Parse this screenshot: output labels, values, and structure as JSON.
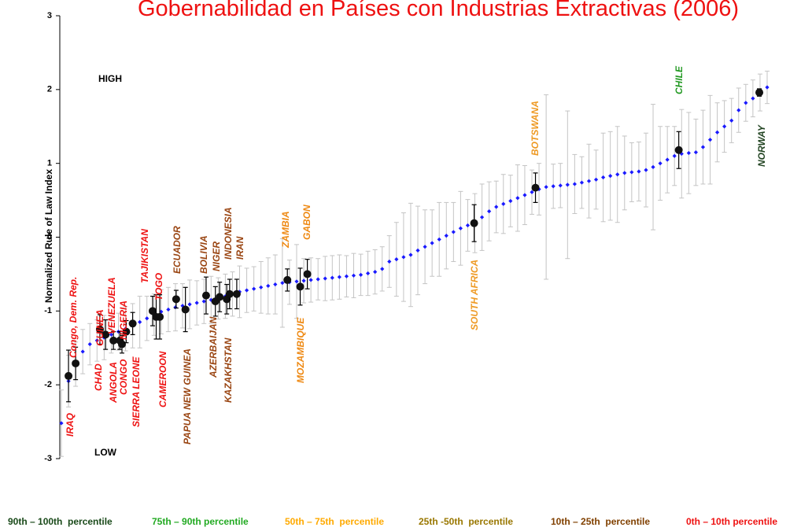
{
  "chart_data": {
    "type": "errorbar",
    "title": "Gobernabilidad en Países con Industrias Extractivas (2006)",
    "y_label": "Normalized Rule of Law Index",
    "annotations": [
      "HIGH",
      "LOW"
    ],
    "ylim": [
      -3,
      3
    ],
    "yticks": [
      -3,
      -2,
      -1,
      0,
      1,
      2,
      3
    ],
    "xlim": [
      0,
      99
    ],
    "series": [
      {
        "color": "#1a1aff",
        "values": [
          -2.52,
          -1.95,
          -1.72,
          -1.55,
          -1.45,
          -1.4,
          -1.36,
          -1.32,
          -1.28,
          -1.24,
          -1.2,
          -1.15,
          -1.1,
          -1.05,
          -1.01,
          -0.98,
          -0.95,
          -0.93,
          -0.91,
          -0.89,
          -0.87,
          -0.85,
          -0.83,
          -0.8,
          -0.77,
          -0.74,
          -0.72,
          -0.7,
          -0.68,
          -0.66,
          -0.64,
          -0.62,
          -0.61,
          -0.6,
          -0.59,
          -0.58,
          -0.57,
          -0.56,
          -0.55,
          -0.54,
          -0.53,
          -0.52,
          -0.51,
          -0.49,
          -0.47,
          -0.43,
          -0.33,
          -0.3,
          -0.27,
          -0.24,
          -0.18,
          -0.13,
          -0.08,
          -0.03,
          0.02,
          0.07,
          0.12,
          0.16,
          0.19,
          0.27,
          0.35,
          0.41,
          0.45,
          0.49,
          0.53,
          0.57,
          0.61,
          0.65,
          0.68,
          0.69,
          0.7,
          0.71,
          0.72,
          0.74,
          0.76,
          0.78,
          0.81,
          0.83,
          0.85,
          0.87,
          0.88,
          0.89,
          0.91,
          0.95,
          1.0,
          1.05,
          1.1,
          1.13,
          1.14,
          1.15,
          1.22,
          1.32,
          1.42,
          1.5,
          1.58,
          1.72,
          1.82,
          1.88,
          1.96,
          2.03
        ],
        "errors": [
          0.45,
          0.35,
          0.3,
          0.3,
          0.28,
          0.28,
          0.3,
          0.25,
          0.25,
          0.3,
          0.3,
          0.35,
          0.3,
          0.28,
          0.3,
          0.3,
          0.32,
          0.3,
          0.33,
          0.3,
          0.3,
          0.32,
          0.28,
          0.3,
          0.3,
          0.35,
          0.3,
          0.3,
          0.35,
          0.38,
          0.4,
          0.6,
          0.3,
          0.5,
          0.3,
          0.3,
          0.28,
          0.3,
          0.3,
          0.3,
          0.28,
          0.3,
          0.28,
          0.3,
          0.3,
          0.3,
          0.35,
          0.5,
          0.6,
          0.7,
          0.6,
          0.5,
          0.45,
          0.5,
          0.45,
          0.4,
          0.5,
          0.35,
          0.4,
          0.45,
          0.4,
          0.35,
          0.4,
          0.35,
          0.45,
          0.4,
          0.3,
          0.35,
          1.25,
          0.3,
          0.3,
          1.0,
          0.4,
          0.35,
          0.5,
          0.4,
          0.6,
          0.6,
          0.65,
          0.5,
          0.4,
          0.4,
          0.5,
          0.85,
          0.5,
          0.45,
          0.4,
          0.6,
          0.55,
          0.45,
          0.5,
          0.6,
          0.4,
          0.35,
          0.3,
          0.3,
          0.25,
          0.25,
          0.25,
          0.22
        ]
      }
    ],
    "countries": {
      "names": [
        "IRAQ",
        "Congo, Dem. Rep.",
        "CHAD",
        "GUINEA",
        "ANGOLA",
        "VENEZUELA",
        "CONGO",
        "NIGERIA",
        "SIERRA LEONE",
        "TAJIKISTAN",
        "TOGO",
        "CAMEROON",
        "ECUADOR",
        "PAPUA NEW GUINEA",
        "BOLIVIA",
        "AZERBAIJAN",
        "NIGER",
        "KAZAKHSTAN",
        "INDONESIA",
        "IRAN",
        "ZAMBIA",
        "MOZAMBIQUE",
        "GABON",
        "SOUTH AFRICA",
        "BOTSWANA",
        "CHILE",
        "NORWAY"
      ],
      "x": [
        1.0,
        2.0,
        5.4,
        6.2,
        7.3,
        8.2,
        8.5,
        9.1,
        10.0,
        12.8,
        13.3,
        13.8,
        16.1,
        17.4,
        20.3,
        21.6,
        22.2,
        23.2,
        23.6,
        24.6,
        31.7,
        33.5,
        34.5,
        57.9,
        66.5,
        86.6,
        97.9
      ],
      "values": [
        -1.88,
        -1.71,
        -1.25,
        -1.32,
        -1.4,
        -1.4,
        -1.45,
        -1.28,
        -1.17,
        -1.0,
        -1.08,
        -1.08,
        -0.84,
        -0.98,
        -0.79,
        -0.87,
        -0.81,
        -0.84,
        -0.77,
        -0.77,
        -0.58,
        -0.67,
        -0.5,
        0.19,
        0.67,
        1.18,
        1.96
      ],
      "errors": [
        0.35,
        0.22,
        0.2,
        0.2,
        0.12,
        0.12,
        0.12,
        0.15,
        0.15,
        0.2,
        0.3,
        0.3,
        0.12,
        0.3,
        0.25,
        0.2,
        0.2,
        0.2,
        0.2,
        0.2,
        0.15,
        0.25,
        0.2,
        0.25,
        0.2,
        0.25,
        0.05
      ],
      "colors": [
        "#ee1111",
        "#ee1111",
        "#ee1111",
        "#ee1111",
        "#ee1111",
        "#ee1111",
        "#ee1111",
        "#ee1111",
        "#ee1111",
        "#ee1111",
        "#ee1111",
        "#ee1111",
        "#994411",
        "#994411",
        "#994411",
        "#994411",
        "#994411",
        "#994411",
        "#994411",
        "#994411",
        "#ee8811",
        "#ee8811",
        "#ee8811",
        "#ee9922",
        "#ee9922",
        "#229922",
        "#224422"
      ]
    },
    "legend": [
      {
        "label": "90th – 100th  percentile",
        "color": "#1a4a1a"
      },
      {
        "label": "75th – 90th percentile",
        "color": "#22aa22"
      },
      {
        "label": "50th – 75th  percentile",
        "color": "#ffaa00"
      },
      {
        "label": "25th -50th  percentile",
        "color": "#997700"
      },
      {
        "label": "10th – 25th  percentile",
        "color": "#804000"
      },
      {
        "label": "0th – 10th percentile",
        "color": "#ee1111"
      }
    ]
  }
}
